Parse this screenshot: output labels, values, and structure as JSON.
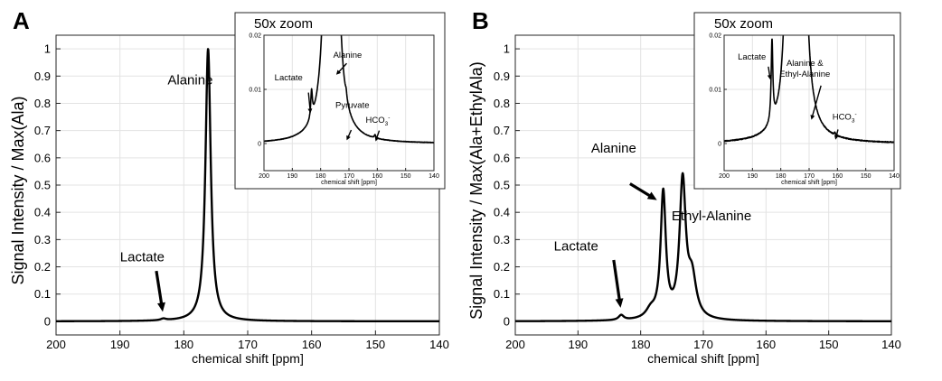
{
  "chart_data": [
    {
      "panel": "A",
      "type": "line",
      "title": "",
      "xlabel": "chemical shift [ppm]",
      "ylabel": "Signal Intensity / Max(Ala)",
      "xlim": [
        200,
        140
      ],
      "ylim": [
        -0.05,
        1.05
      ],
      "xticks": [
        200,
        190,
        180,
        170,
        160,
        150,
        140
      ],
      "yticks": [
        0,
        0.1,
        0.2,
        0.3,
        0.4,
        0.5,
        0.6,
        0.7,
        0.8,
        0.9,
        1
      ],
      "grid": true,
      "peaks": [
        {
          "name": "Lactate",
          "ppm": 183.2,
          "amp": 0.006,
          "width": 0.5
        },
        {
          "name": "Alanine",
          "ppm": 176.2,
          "amp": 1.0,
          "width": 0.5
        }
      ],
      "annotations": [
        {
          "text": "Alanine",
          "x": 179,
          "y": 0.87
        },
        {
          "text": "Lactate",
          "x": 186.5,
          "y": 0.22
        },
        {
          "text": "",
          "arrow_from": [
            184.3,
            0.185
          ],
          "arrow_to": [
            183.3,
            0.035
          ]
        }
      ],
      "inset": {
        "title": "50x zoom",
        "xlabel": "chemical shift [ppm]",
        "xlim": [
          200,
          140
        ],
        "ylim": [
          -0.005,
          0.02
        ],
        "xticks": [
          200,
          190,
          180,
          170,
          160,
          150,
          140
        ],
        "yticks": [
          0,
          0.01,
          0.02
        ],
        "peaks": [
          {
            "name": "Lactate",
            "ppm": 183.2,
            "amp": 0.005,
            "width": 0.35
          },
          {
            "name": "Alanine",
            "ppm": 176.2,
            "amp": 1.0,
            "width": 0.5
          },
          {
            "name": "Pyruvate",
            "ppm": 171,
            "amp": 0.0011,
            "width": 0.3
          },
          {
            "name": "HCO3-",
            "ppm": 160.8,
            "amp": 0.0006,
            "width": 0.3
          }
        ],
        "annotations": [
          {
            "text": "Lactate",
            "x": 191.3,
            "y": 0.0117
          },
          {
            "text": "Alanine",
            "x": 170.5,
            "y": 0.0158
          },
          {
            "text": "Pyruvate",
            "x": 168.8,
            "y": 0.0066
          },
          {
            "text": "HCO",
            "sub": "3",
            "sup": "-",
            "x": 159.8,
            "y": 0.0038
          },
          {
            "text": "",
            "arrow_from": [
              184.3,
              0.0094
            ],
            "arrow_to": [
              183.6,
              0.0056
            ]
          },
          {
            "text": "",
            "arrow_from": [
              170.8,
              0.0148
            ],
            "arrow_to": [
              174.5,
              0.0127
            ]
          },
          {
            "text": "",
            "arrow_from": [
              169.2,
              0.0025
            ],
            "arrow_to": [
              170.8,
              0.0006
            ]
          },
          {
            "text": "",
            "arrow_from": [
              159.3,
              0.0024
            ],
            "arrow_to": [
              160.6,
              0.0004
            ]
          }
        ]
      }
    },
    {
      "panel": "B",
      "type": "line",
      "title": "",
      "xlabel": "chemical shift [ppm]",
      "ylabel": "Signal Intensity / Max(Ala+EthylAla)",
      "xlim": [
        200,
        140
      ],
      "ylim": [
        -0.05,
        1.05
      ],
      "xticks": [
        200,
        190,
        180,
        170,
        160,
        150,
        140
      ],
      "yticks": [
        0,
        0.1,
        0.2,
        0.3,
        0.4,
        0.5,
        0.6,
        0.7,
        0.8,
        0.9,
        1
      ],
      "grid": true,
      "peaks": [
        {
          "name": "Lactate",
          "ppm": 183.1,
          "amp": 0.018,
          "width": 0.5
        },
        {
          "name": "Alanine",
          "ppm": 176.4,
          "amp": 0.46,
          "width": 0.5
        },
        {
          "name": "Ethyl-Alanine",
          "ppm": 173.3,
          "amp": 0.5,
          "width": 0.6
        },
        {
          "name": "shoulder-1",
          "ppm": 178.4,
          "amp": 0.03,
          "width": 0.9
        },
        {
          "name": "shoulder-2",
          "ppm": 171.8,
          "amp": 0.14,
          "width": 0.8
        }
      ],
      "annotations": [
        {
          "text": "Alanine",
          "x": 184.3,
          "y": 0.62
        },
        {
          "text": "Ethyl-Alanine",
          "x": 168.7,
          "y": 0.37
        },
        {
          "text": "Lactate",
          "x": 190.3,
          "y": 0.26
        },
        {
          "text": "",
          "arrow_from": [
            181.7,
            0.505
          ],
          "arrow_to": [
            177.4,
            0.445
          ]
        },
        {
          "text": "",
          "arrow_from": [
            184.3,
            0.225
          ],
          "arrow_to": [
            183.2,
            0.05
          ]
        }
      ],
      "inset": {
        "title": "50x zoom",
        "xlabel": "chemical shift [ppm]",
        "xlim": [
          200,
          140
        ],
        "ylim": [
          -0.005,
          0.02
        ],
        "xticks": [
          200,
          190,
          180,
          170,
          160,
          150,
          140
        ],
        "yticks": [
          0,
          0.01,
          0.02
        ],
        "peaks": [
          {
            "name": "Lactate",
            "ppm": 183.1,
            "amp": 0.015,
            "width": 0.35
          },
          {
            "name": "Alanine",
            "ppm": 176.4,
            "amp": 0.46,
            "width": 0.5
          },
          {
            "name": "Ethyl-Alanine",
            "ppm": 173.3,
            "amp": 0.5,
            "width": 0.6
          },
          {
            "name": "HCO3-",
            "ppm": 160.9,
            "amp": 0.0004,
            "width": 0.3
          }
        ],
        "annotations": [
          {
            "text": "Lactate",
            "x": 190.2,
            "y": 0.0155
          },
          {
            "text": "Alanine &",
            "x": 171.5,
            "y": 0.0143
          },
          {
            "text": "Ethyl-Alanine",
            "x": 171.5,
            "y": 0.0123
          },
          {
            "text": "HCO",
            "sub": "3",
            "sup": "-",
            "x": 157.5,
            "y": 0.0044
          },
          {
            "text": "",
            "arrow_from": [
              184.4,
              0.0142
            ],
            "arrow_to": [
              183.7,
              0.0118
            ]
          },
          {
            "text": "",
            "arrow_from": [
              165.8,
              0.0107
            ],
            "arrow_to": [
              169.2,
              0.0044
            ]
          },
          {
            "text": "",
            "arrow_from": [
              159.8,
              0.0026
            ],
            "arrow_to": [
              160.7,
              0.0007
            ]
          }
        ]
      }
    }
  ]
}
